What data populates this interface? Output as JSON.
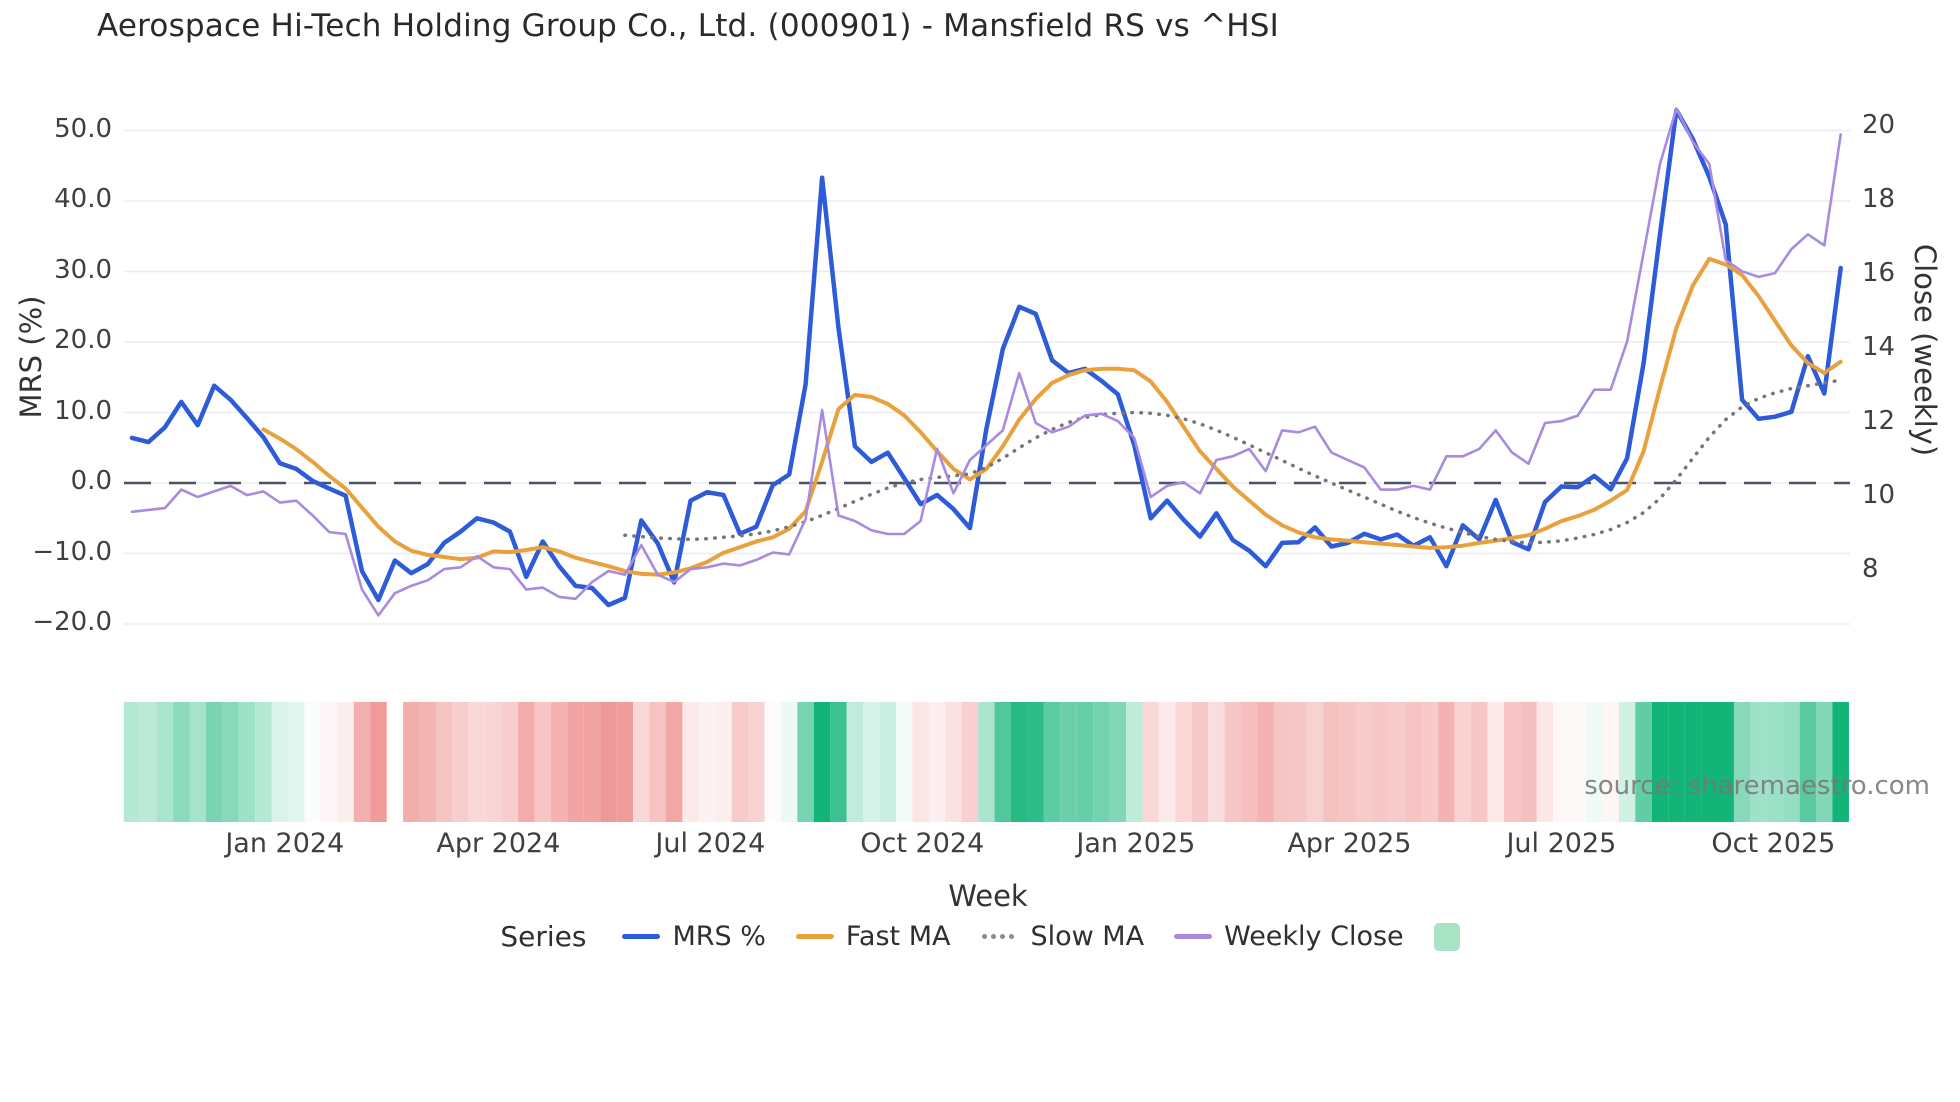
{
  "title": "Aerospace Hi-Tech Holding Group Co., Ltd. (000901) - Mansfield RS vs ^HSI",
  "source_text": "source: sharemaestro.com",
  "colors": {
    "mrs": "#2E5CD8",
    "fast_ma": "#E8A13C",
    "slow_ma": "#75757D",
    "weekly_close": "#A88BE0",
    "zero_line": "#4C5366",
    "gridline": "#EBEBF2",
    "heat_positive": "#12B478",
    "heat_negative": "#E96666",
    "heat_legend_swatch": "#A8E3C6",
    "text": "#3F3F3F"
  },
  "legend": {
    "title": "Series",
    "items": [
      {
        "label": "MRS %",
        "swatch": "line",
        "color": "#2E5CD8"
      },
      {
        "label": "Fast MA",
        "swatch": "line",
        "color": "#E8A13C"
      },
      {
        "label": "Slow MA",
        "swatch": "dots",
        "color": "#8D8D96"
      },
      {
        "label": "Weekly Close",
        "swatch": "line",
        "color": "#A88BE0"
      },
      {
        "label": "",
        "swatch": "square",
        "color": "#A8E3C6"
      }
    ]
  },
  "chart_data": {
    "type": "line",
    "title": "Aerospace Hi-Tech Holding Group Co., Ltd. (000901) - Mansfield RS vs ^HSI",
    "xlabel": "Week",
    "weeks_total": 105,
    "x_ticks": [
      {
        "label": "Jan 2024",
        "week": 9.3
      },
      {
        "label": "Apr 2024",
        "week": 22.3
      },
      {
        "label": "Jul 2024",
        "week": 35.2
      },
      {
        "label": "Oct 2024",
        "week": 48.1
      },
      {
        "label": "Jan 2025",
        "week": 61.1
      },
      {
        "label": "Apr 2025",
        "week": 74.1
      },
      {
        "label": "Jul 2025",
        "week": 87.0
      },
      {
        "label": "Oct 2025",
        "week": 99.9
      }
    ],
    "left_axis": {
      "label": "MRS (%)",
      "tick_labels": [
        "50.0",
        "40.0",
        "30.0",
        "20.0",
        "10.0",
        "0.0",
        "−10.0",
        "−20.0"
      ],
      "tick_values": [
        50,
        40,
        30,
        20,
        10,
        0,
        -10,
        -20
      ],
      "range": [
        -23.5,
        56.5
      ]
    },
    "right_axis": {
      "label": "Close (weekly)",
      "tick_labels": [
        "20",
        "18",
        "16",
        "14",
        "12",
        "10",
        "8"
      ],
      "tick_values": [
        20,
        18,
        16,
        14,
        12,
        10,
        8
      ],
      "range": [
        6.3,
        21.1
      ]
    },
    "zero_line": {
      "value": 0,
      "style": "dash"
    },
    "legend_position": "bottom",
    "grid": true,
    "heat_strip": {
      "colored_by": "MRS %",
      "missing_weeks": [
        16
      ]
    },
    "series": [
      {
        "name": "MRS %",
        "axis": "left",
        "style": "solid",
        "width": 4.5,
        "values": [
          6.4,
          5.8,
          7.9,
          11.5,
          8.2,
          13.8,
          11.8,
          9.2,
          6.5,
          2.8,
          2.0,
          0.3,
          -0.8,
          -1.8,
          -12.5,
          -16.6,
          -11.0,
          -12.8,
          -11.5,
          -8.5,
          -6.9,
          -5.0,
          -5.6,
          -6.9,
          -13.3,
          -8.3,
          -11.8,
          -14.6,
          -14.9,
          -17.3,
          -16.3,
          -5.3,
          -8.6,
          -14.1,
          -2.5,
          -1.3,
          -1.7,
          -7.2,
          -6.2,
          -0.3,
          1.2,
          14.0,
          43.3,
          22.0,
          5.2,
          3.0,
          4.3,
          0.7,
          -3.0,
          -1.7,
          -3.7,
          -6.4,
          7.7,
          19.0,
          25.0,
          24.0,
          17.4,
          15.6,
          16.2,
          14.5,
          12.6,
          5.4,
          -5.0,
          -2.5,
          -5.2,
          -7.6,
          -4.3,
          -8.1,
          -9.6,
          -11.8,
          -8.5,
          -8.4,
          -6.3,
          -9.0,
          -8.5,
          -7.2,
          -8.0,
          -7.3,
          -8.9,
          -7.7,
          -11.8,
          -6.0,
          -8.0,
          -2.4,
          -8.4,
          -9.4,
          -2.7,
          -0.5,
          -0.6,
          1.0,
          -0.9,
          3.5,
          17.0,
          35.3,
          52.9,
          48.8,
          43.4,
          36.7,
          11.8,
          9.1,
          9.4,
          10.1,
          18.0,
          12.7,
          30.5
        ]
      },
      {
        "name": "Fast MA",
        "axis": "left",
        "style": "solid",
        "width": 4,
        "values": [
          null,
          null,
          null,
          null,
          null,
          null,
          null,
          null,
          7.6,
          6.3,
          4.8,
          3.0,
          1.0,
          -0.8,
          -3.5,
          -6.2,
          -8.3,
          -9.6,
          -10.2,
          -10.5,
          -10.8,
          -10.6,
          -9.7,
          -9.8,
          -9.5,
          -9.1,
          -9.7,
          -10.6,
          -11.2,
          -11.8,
          -12.5,
          -12.9,
          -13.0,
          -12.7,
          -12.1,
          -11.2,
          -9.9,
          -9.1,
          -8.3,
          -7.7,
          -6.5,
          -4.0,
          3.0,
          10.5,
          12.5,
          12.2,
          11.2,
          9.6,
          7.2,
          4.5,
          2.0,
          0.5,
          2.0,
          5.2,
          9.0,
          11.9,
          14.2,
          15.3,
          16.0,
          16.2,
          16.2,
          16.0,
          14.4,
          11.5,
          8.0,
          4.5,
          2.0,
          -0.5,
          -2.5,
          -4.5,
          -6.0,
          -7.0,
          -7.7,
          -8.0,
          -8.2,
          -8.4,
          -8.6,
          -8.8,
          -9.0,
          -9.2,
          -9.1,
          -8.9,
          -8.5,
          -8.2,
          -7.8,
          -7.4,
          -6.5,
          -5.4,
          -4.7,
          -3.8,
          -2.5,
          -1.0,
          4.5,
          13.5,
          22.0,
          28.0,
          31.8,
          31.0,
          29.5,
          26.5,
          23.0,
          19.5,
          17.0,
          15.6,
          17.2
        ]
      },
      {
        "name": "Slow MA",
        "axis": "left",
        "style": "dot",
        "width": 3.5,
        "values": [
          null,
          null,
          null,
          null,
          null,
          null,
          null,
          null,
          null,
          null,
          null,
          null,
          null,
          null,
          null,
          null,
          null,
          null,
          null,
          null,
          null,
          null,
          null,
          null,
          null,
          null,
          null,
          null,
          null,
          null,
          -7.4,
          -7.6,
          -7.8,
          -7.9,
          -8.0,
          -7.9,
          -7.7,
          -7.5,
          -7.2,
          -6.8,
          -6.2,
          -5.5,
          -4.6,
          -3.6,
          -2.6,
          -1.6,
          -0.7,
          0.0,
          0.5,
          0.8,
          1.0,
          1.3,
          2.2,
          3.5,
          5.0,
          6.4,
          7.6,
          8.6,
          9.3,
          9.7,
          9.9,
          10.0,
          9.9,
          9.6,
          9.1,
          8.4,
          7.5,
          6.5,
          5.4,
          4.3,
          3.2,
          2.1,
          1.0,
          0.0,
          -1.0,
          -2.0,
          -3.0,
          -4.0,
          -4.9,
          -5.7,
          -6.4,
          -7.0,
          -7.6,
          -8.0,
          -8.3,
          -8.5,
          -8.4,
          -8.2,
          -7.8,
          -7.3,
          -6.6,
          -5.6,
          -4.2,
          -2.2,
          0.5,
          3.5,
          6.5,
          9.0,
          10.8,
          12.0,
          12.8,
          13.4,
          13.8,
          14.2,
          14.6
        ]
      },
      {
        "name": "Weekly Close",
        "axis": "right",
        "style": "solid",
        "width": 2.6,
        "values": [
          9.6,
          9.65,
          9.7,
          10.2,
          10.0,
          10.15,
          10.3,
          10.05,
          10.15,
          9.85,
          9.9,
          9.5,
          9.05,
          9.0,
          7.5,
          6.8,
          7.4,
          7.6,
          7.75,
          8.05,
          8.1,
          8.4,
          8.1,
          8.05,
          7.5,
          7.55,
          7.3,
          7.25,
          7.7,
          8.0,
          7.9,
          8.7,
          7.9,
          7.7,
          8.05,
          8.1,
          8.2,
          8.15,
          8.3,
          8.5,
          8.45,
          9.4,
          12.35,
          9.5,
          9.35,
          9.1,
          9.0,
          9.0,
          9.35,
          11.3,
          10.1,
          11.0,
          11.4,
          11.8,
          13.35,
          12.0,
          11.75,
          11.9,
          12.2,
          12.25,
          12.05,
          11.6,
          10.0,
          10.3,
          10.4,
          10.1,
          11.0,
          11.1,
          11.3,
          10.7,
          11.8,
          11.75,
          11.9,
          11.2,
          11.0,
          10.8,
          10.2,
          10.2,
          10.3,
          10.2,
          11.1,
          11.1,
          11.3,
          11.8,
          11.2,
          10.9,
          12.0,
          12.05,
          12.2,
          12.9,
          12.9,
          14.2,
          16.6,
          19.0,
          20.5,
          19.6,
          19.0,
          16.4,
          16.1,
          15.95,
          16.05,
          16.7,
          17.1,
          16.8,
          19.8
        ]
      }
    ]
  }
}
